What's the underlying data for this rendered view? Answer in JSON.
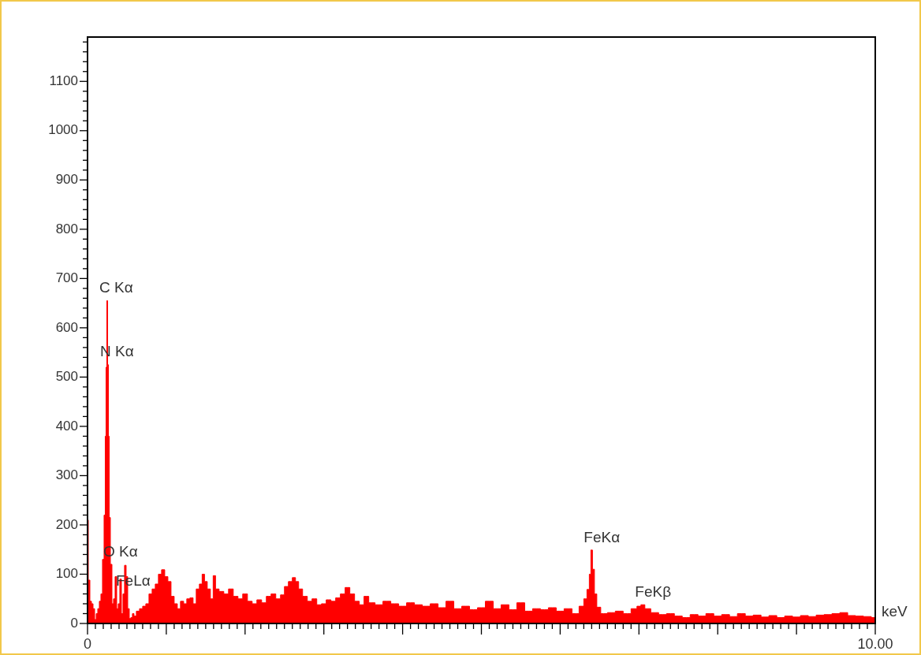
{
  "chart_data": {
    "type": "area",
    "xlabel": "keV",
    "color": "#ff0000",
    "x": [
      0,
      0.02,
      0.04,
      0.06,
      0.08,
      0.1,
      0.12,
      0.14,
      0.16,
      0.18,
      0.2,
      0.22,
      0.23,
      0.24,
      0.25,
      0.26,
      0.27,
      0.28,
      0.3,
      0.32,
      0.34,
      0.36,
      0.38,
      0.4,
      0.42,
      0.44,
      0.46,
      0.48,
      0.5,
      0.52,
      0.54,
      0.56,
      0.58,
      0.6,
      0.64,
      0.68,
      0.72,
      0.76,
      0.8,
      0.84,
      0.88,
      0.92,
      0.96,
      1,
      1.04,
      1.08,
      1.12,
      1.16,
      1.2,
      1.24,
      1.28,
      1.32,
      1.36,
      1.4,
      1.44,
      1.47,
      1.5,
      1.54,
      1.58,
      1.61,
      1.64,
      1.7,
      1.76,
      1.82,
      1.88,
      1.94,
      2,
      2.06,
      2.12,
      2.18,
      2.24,
      2.3,
      2.36,
      2.42,
      2.48,
      2.52,
      2.58,
      2.62,
      2.66,
      2.7,
      2.76,
      2.82,
      2.88,
      2.94,
      3,
      3.06,
      3.12,
      3.18,
      3.24,
      3.3,
      3.36,
      3.42,
      3.48,
      3.54,
      3.6,
      3.7,
      3.8,
      3.9,
      4,
      4.1,
      4.2,
      4.3,
      4.4,
      4.5,
      4.6,
      4.7,
      4.8,
      4.9,
      5,
      5.1,
      5.2,
      5.3,
      5.4,
      5.5,
      5.6,
      5.7,
      5.8,
      5.9,
      6,
      6.1,
      6.2,
      6.28,
      6.32,
      6.36,
      6.38,
      6.4,
      6.42,
      6.45,
      6.48,
      6.55,
      6.65,
      6.75,
      6.85,
      6.95,
      7,
      7.05,
      7.1,
      7.2,
      7.3,
      7.4,
      7.5,
      7.6,
      7.7,
      7.8,
      7.9,
      8,
      8.1,
      8.2,
      8.3,
      8.4,
      8.5,
      8.6,
      8.7,
      8.8,
      8.9,
      9,
      9.1,
      9.2,
      9.3,
      9.4,
      9.5,
      9.6,
      9.7,
      9.8,
      9.9,
      10
    ],
    "values": [
      210,
      88,
      45,
      40,
      30,
      8,
      20,
      30,
      45,
      60,
      130,
      220,
      380,
      520,
      655,
      525,
      380,
      215,
      120,
      40,
      50,
      95,
      30,
      40,
      90,
      20,
      60,
      118,
      95,
      30,
      10,
      12,
      20,
      15,
      25,
      30,
      35,
      40,
      60,
      70,
      80,
      100,
      109,
      95,
      85,
      55,
      40,
      30,
      45,
      40,
      50,
      52,
      40,
      70,
      80,
      100,
      85,
      70,
      50,
      97,
      70,
      65,
      60,
      70,
      55,
      50,
      60,
      45,
      40,
      48,
      42,
      55,
      60,
      50,
      58,
      75,
      85,
      93,
      85,
      70,
      55,
      45,
      50,
      38,
      40,
      48,
      45,
      52,
      60,
      73,
      60,
      45,
      38,
      55,
      42,
      38,
      45,
      40,
      35,
      42,
      38,
      35,
      40,
      32,
      45,
      30,
      35,
      28,
      32,
      45,
      30,
      38,
      28,
      42,
      25,
      30,
      28,
      32,
      25,
      30,
      20,
      35,
      50,
      69,
      100,
      149,
      110,
      60,
      33,
      20,
      22,
      25,
      20,
      30,
      35,
      38,
      30,
      22,
      18,
      20,
      15,
      12,
      18,
      15,
      20,
      15,
      18,
      14,
      20,
      15,
      17,
      13,
      16,
      12,
      15,
      13,
      16,
      14,
      17,
      18,
      20,
      22,
      16,
      15,
      14,
      12
    ],
    "xlim": [
      0,
      10
    ],
    "ylim": [
      0,
      1190
    ],
    "xticks": [
      0,
      {
        "value": 0.1,
        "label": null
      },
      {
        "value": 0.2,
        "label": null
      },
      {
        "value": 0.3,
        "label": null
      },
      {
        "value": 0.4,
        "label": null
      },
      {
        "value": 0.5,
        "label": null
      },
      {
        "value": 0.6,
        "label": null
      },
      {
        "value": 0.7,
        "label": null
      },
      {
        "value": 0.8,
        "label": null
      },
      {
        "value": 0.9,
        "label": null
      },
      {
        "value": 1,
        "label": null
      },
      {
        "value": 1.1,
        "label": null
      },
      {
        "value": 1.2,
        "label": null
      },
      {
        "value": 1.3,
        "label": null
      },
      {
        "value": 1.4,
        "label": null
      },
      {
        "value": 1.5,
        "label": null
      },
      {
        "value": 1.6,
        "label": null
      },
      {
        "value": 1.7,
        "label": null
      },
      {
        "value": 1.8,
        "label": null
      },
      {
        "value": 1.9,
        "label": null
      },
      {
        "value": 2,
        "label": null
      },
      {
        "value": 2.1,
        "label": null
      },
      {
        "value": 2.2,
        "label": null
      },
      {
        "value": 2.3,
        "label": null
      },
      {
        "value": 2.4,
        "label": null
      },
      {
        "value": 2.5,
        "label": null
      },
      {
        "value": 2.6,
        "label": null
      },
      {
        "value": 2.7,
        "label": null
      },
      {
        "value": 2.8,
        "label": null
      },
      {
        "value": 2.9,
        "label": null
      },
      {
        "value": 3,
        "label": null
      },
      {
        "value": 3.1,
        "label": null
      },
      {
        "value": 3.2,
        "label": null
      },
      {
        "value": 3.3,
        "label": null
      },
      {
        "value": 3.4,
        "label": null
      },
      {
        "value": 3.5,
        "label": null
      },
      {
        "value": 3.6,
        "label": null
      },
      {
        "value": 3.7,
        "label": null
      },
      {
        "value": 3.8,
        "label": null
      },
      {
        "value": 3.9,
        "label": null
      },
      {
        "value": 4,
        "label": null
      },
      {
        "value": 4.1,
        "label": null
      },
      {
        "value": 4.2,
        "label": null
      },
      {
        "value": 4.3,
        "label": null
      },
      {
        "value": 4.4,
        "label": null
      },
      {
        "value": 4.5,
        "label": null
      },
      {
        "value": 4.6,
        "label": null
      },
      {
        "value": 4.7,
        "label": null
      },
      {
        "value": 4.8,
        "label": null
      },
      {
        "value": 4.9,
        "label": null
      },
      {
        "value": 5,
        "label": null
      },
      {
        "value": 5.1,
        "label": null
      },
      {
        "value": 5.2,
        "label": null
      },
      {
        "value": 5.3,
        "label": null
      },
      {
        "value": 5.4,
        "label": null
      },
      {
        "value": 5.5,
        "label": null
      },
      {
        "value": 5.6,
        "label": null
      },
      {
        "value": 5.7,
        "label": null
      },
      {
        "value": 5.8,
        "label": null
      },
      {
        "value": 5.9,
        "label": null
      },
      {
        "value": 6,
        "label": null
      },
      {
        "value": 6.1,
        "label": null
      },
      {
        "value": 6.2,
        "label": null
      },
      {
        "value": 6.3,
        "label": null
      },
      {
        "value": 6.4,
        "label": null
      },
      {
        "value": 6.5,
        "label": null
      },
      {
        "value": 6.6,
        "label": null
      },
      {
        "value": 6.7,
        "label": null
      },
      {
        "value": 6.8,
        "label": null
      },
      {
        "value": 6.9,
        "label": null
      },
      {
        "value": 7,
        "label": null
      },
      {
        "value": 7.1,
        "label": null
      },
      {
        "value": 7.2,
        "label": null
      },
      {
        "value": 7.3,
        "label": null
      },
      {
        "value": 7.4,
        "label": null
      },
      {
        "value": 7.5,
        "label": null
      },
      {
        "value": 7.6,
        "label": null
      },
      {
        "value": 7.7,
        "label": null
      },
      {
        "value": 7.8,
        "label": null
      },
      {
        "value": 7.9,
        "label": null
      },
      {
        "value": 8,
        "label": null
      },
      {
        "value": 8.1,
        "label": null
      },
      {
        "value": 8.2,
        "label": null
      },
      {
        "value": 8.3,
        "label": null
      },
      {
        "value": 8.4,
        "label": null
      },
      {
        "value": 8.5,
        "label": null
      },
      {
        "value": 8.6,
        "label": null
      },
      {
        "value": 8.7,
        "label": null
      },
      {
        "value": 8.8,
        "label": null
      },
      {
        "value": 8.9,
        "label": null
      },
      {
        "value": 9,
        "label": null
      },
      {
        "value": 9.1,
        "label": null
      },
      {
        "value": 9.2,
        "label": null
      },
      {
        "value": 9.3,
        "label": null
      },
      {
        "value": 9.4,
        "label": null
      },
      {
        "value": 9.5,
        "label": null
      },
      {
        "value": 9.6,
        "label": null
      },
      {
        "value": 9.7,
        "label": null
      },
      {
        "value": 9.8,
        "label": null
      },
      {
        "value": 9.9,
        "label": null
      },
      {
        "value": 10,
        "label": "10.00"
      }
    ],
    "yticks": [
      0,
      {
        "value": 20,
        "label": null
      },
      {
        "value": 40,
        "label": null
      },
      {
        "value": 60,
        "label": null
      },
      {
        "value": 80,
        "label": null
      },
      100,
      {
        "value": 120,
        "label": null
      },
      {
        "value": 140,
        "label": null
      },
      {
        "value": 160,
        "label": null
      },
      {
        "value": 180,
        "label": null
      },
      200,
      {
        "value": 220,
        "label": null
      },
      {
        "value": 240,
        "label": null
      },
      {
        "value": 260,
        "label": null
      },
      {
        "value": 280,
        "label": null
      },
      300,
      {
        "value": 320,
        "label": null
      },
      {
        "value": 340,
        "label": null
      },
      {
        "value": 360,
        "label": null
      },
      {
        "value": 380,
        "label": null
      },
      400,
      {
        "value": 420,
        "label": null
      },
      {
        "value": 440,
        "label": null
      },
      {
        "value": 460,
        "label": null
      },
      {
        "value": 480,
        "label": null
      },
      500,
      {
        "value": 520,
        "label": null
      },
      {
        "value": 540,
        "label": null
      },
      {
        "value": 560,
        "label": null
      },
      {
        "value": 580,
        "label": null
      },
      600,
      {
        "value": 620,
        "label": null
      },
      {
        "value": 640,
        "label": null
      },
      {
        "value": 660,
        "label": null
      },
      {
        "value": 680,
        "label": null
      },
      700,
      {
        "value": 720,
        "label": null
      },
      {
        "value": 740,
        "label": null
      },
      {
        "value": 760,
        "label": null
      },
      {
        "value": 780,
        "label": null
      },
      800,
      {
        "value": 820,
        "label": null
      },
      {
        "value": 840,
        "label": null
      },
      {
        "value": 860,
        "label": null
      },
      {
        "value": 880,
        "label": null
      },
      900,
      {
        "value": 920,
        "label": null
      },
      {
        "value": 940,
        "label": null
      },
      {
        "value": 960,
        "label": null
      },
      {
        "value": 980,
        "label": null
      },
      1000,
      {
        "value": 1020,
        "label": null
      },
      {
        "value": 1040,
        "label": null
      },
      {
        "value": 1060,
        "label": null
      },
      {
        "value": 1080,
        "label": null
      },
      1100,
      {
        "value": 1120,
        "label": null
      },
      {
        "value": 1140,
        "label": null
      },
      {
        "value": 1160,
        "label": null
      },
      {
        "value": 1180,
        "label": null
      }
    ],
    "annotations": [
      {
        "text": "C Kα",
        "x": 0.25,
        "y": 655
      },
      {
        "text": "N Kα",
        "x": 0.26,
        "y": 525
      },
      {
        "text": "O Kα",
        "x": 0.3,
        "y": 120
      },
      {
        "text": "FeLα",
        "x": 0.46,
        "y": 60
      },
      {
        "text": "FeKα",
        "x": 6.4,
        "y": 149
      },
      {
        "text": "FeKβ",
        "x": 7.05,
        "y": 38
      }
    ]
  }
}
